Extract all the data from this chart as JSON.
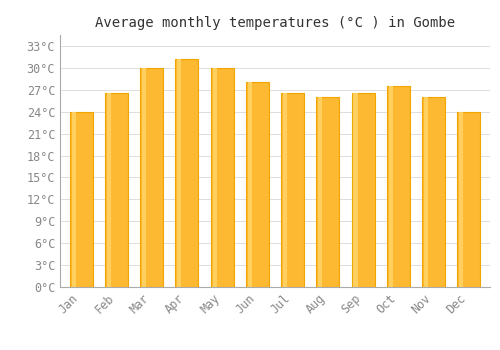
{
  "title": "Average monthly temperatures (°C ) in Gombe",
  "months": [
    "Jan",
    "Feb",
    "Mar",
    "Apr",
    "May",
    "Jun",
    "Jul",
    "Aug",
    "Sep",
    "Oct",
    "Nov",
    "Dec"
  ],
  "values": [
    24.0,
    26.5,
    30.0,
    31.2,
    30.0,
    28.0,
    26.5,
    26.0,
    26.5,
    27.5,
    26.0,
    24.0
  ],
  "bar_color": "#FDB932",
  "bar_edge_color": "#F0A500",
  "background_color": "#FFFFFF",
  "plot_bg_color": "#FFFFFF",
  "grid_color": "#DDDDDD",
  "ytick_labels": [
    "0°C",
    "3°C",
    "6°C",
    "9°C",
    "12°C",
    "15°C",
    "18°C",
    "21°C",
    "24°C",
    "27°C",
    "30°C",
    "33°C"
  ],
  "ytick_values": [
    0,
    3,
    6,
    9,
    12,
    15,
    18,
    21,
    24,
    27,
    30,
    33
  ],
  "ylim": [
    0,
    34.5
  ],
  "title_fontsize": 10,
  "tick_fontsize": 8.5,
  "tick_color": "#888888",
  "bar_width": 0.65
}
